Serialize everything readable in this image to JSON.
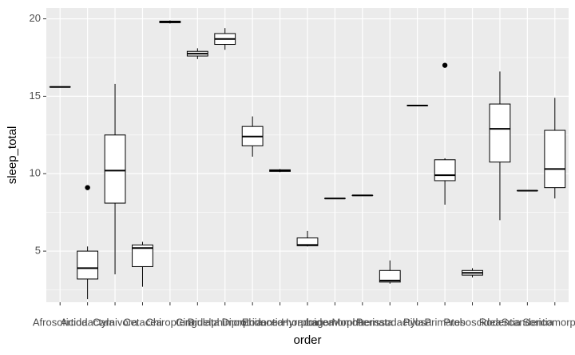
{
  "chart_data": {
    "type": "box",
    "x_label": "order",
    "y_label": "sleep_total",
    "categories": [
      "Afrosoricida",
      "Artiodactyla",
      "Carnivora",
      "Cetacea",
      "Chiroptera",
      "Cingulata",
      "Didelphimorphia",
      "Diprotodontia",
      "Erinaceomorpha",
      "Hyracoidea",
      "Lagomorpha",
      "Monotremata",
      "Perissodactyla",
      "Pilosa",
      "Primates",
      "Proboscidea",
      "Rodentia",
      "Scandentia",
      "Soricomorpha"
    ],
    "boxes": [
      {
        "min": 15.6,
        "q1": 15.6,
        "median": 15.6,
        "q3": 15.6,
        "max": 15.6
      },
      {
        "min": 1.9,
        "q1": 3.2,
        "median": 3.9,
        "q3": 5.0,
        "max": 5.3,
        "outliers": [
          9.1
        ]
      },
      {
        "min": 3.5,
        "q1": 8.1,
        "median": 10.2,
        "q3": 12.5,
        "max": 15.8
      },
      {
        "min": 2.7,
        "q1": 4.0,
        "median": 5.2,
        "q3": 5.4,
        "max": 5.6
      },
      {
        "min": 19.7,
        "q1": 19.75,
        "median": 19.8,
        "q3": 19.85,
        "max": 19.9
      },
      {
        "min": 17.4,
        "q1": 17.6,
        "median": 17.75,
        "q3": 17.9,
        "max": 18.1
      },
      {
        "min": 18.0,
        "q1": 18.35,
        "median": 18.7,
        "q3": 19.05,
        "max": 19.4
      },
      {
        "min": 11.1,
        "q1": 11.8,
        "median": 12.4,
        "q3": 13.05,
        "max": 13.7
      },
      {
        "min": 10.1,
        "q1": 10.15,
        "median": 10.2,
        "q3": 10.25,
        "max": 10.3
      },
      {
        "min": 5.3,
        "q1": 5.35,
        "median": 5.4,
        "q3": 5.85,
        "max": 6.3
      },
      {
        "min": 8.4,
        "q1": 8.4,
        "median": 8.4,
        "q3": 8.4,
        "max": 8.4
      },
      {
        "min": 8.6,
        "q1": 8.6,
        "median": 8.6,
        "q3": 8.6,
        "max": 8.6
      },
      {
        "min": 2.9,
        "q1": 3.0,
        "median": 3.1,
        "q3": 3.75,
        "max": 4.4
      },
      {
        "min": 14.4,
        "q1": 14.4,
        "median": 14.4,
        "q3": 14.4,
        "max": 14.4
      },
      {
        "min": 8.0,
        "q1": 9.55,
        "median": 9.9,
        "q3": 10.9,
        "max": 11.0,
        "outliers": [
          17.0
        ]
      },
      {
        "min": 3.3,
        "q1": 3.45,
        "median": 3.6,
        "q3": 3.75,
        "max": 3.9
      },
      {
        "min": 7.0,
        "q1": 10.75,
        "median": 12.9,
        "q3": 14.5,
        "max": 16.6
      },
      {
        "min": 8.9,
        "q1": 8.9,
        "median": 8.9,
        "q3": 8.9,
        "max": 8.9
      },
      {
        "min": 8.4,
        "q1": 9.1,
        "median": 10.3,
        "q3": 12.8,
        "max": 14.9
      }
    ],
    "ylim": [
      1.7,
      20.7
    ],
    "yticks": [
      5,
      10,
      15,
      20
    ],
    "minor_yticks": [
      2.5,
      7.5,
      12.5,
      17.5
    ],
    "grid": true,
    "color": "#000000"
  }
}
